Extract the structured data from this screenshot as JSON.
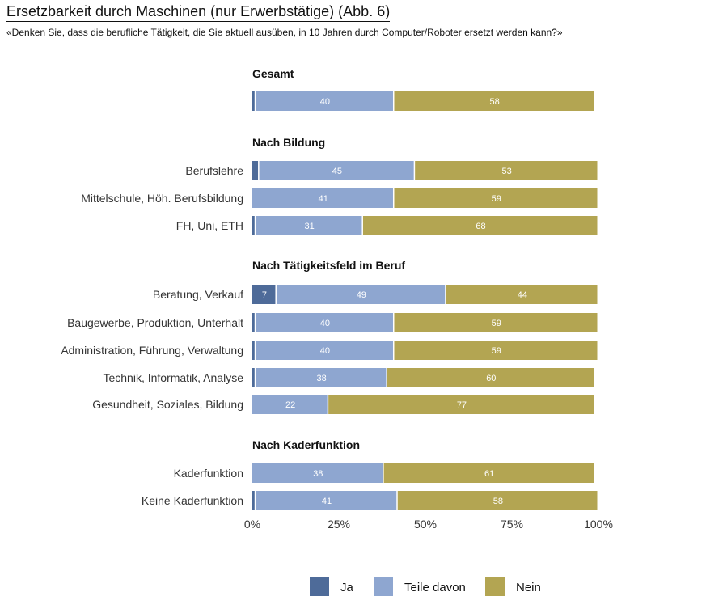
{
  "title": "Ersetzbarkeit durch Maschinen (nur Erwerbstätige)  (Abb. 6)",
  "subtitle": "«Denken Sie, dass die berufliche Tätigkeit, die Sie aktuell ausüben, in 10 Jahren durch Computer/Roboter ersetzt werden kann?»",
  "colors": {
    "Ja": "#4e6b99",
    "Teile davon": "#8ea6d0",
    "Nein": "#b3a552"
  },
  "chart_data": {
    "type": "bar",
    "orientation": "horizontal",
    "stacked": true,
    "xlim": [
      0,
      100
    ],
    "xticks": [
      "0%",
      "25%",
      "50%",
      "75%",
      "100%"
    ],
    "legend_position": "bottom",
    "series": [
      {
        "name": "Ja"
      },
      {
        "name": "Teile davon"
      },
      {
        "name": "Nein"
      }
    ],
    "groups": [
      {
        "header": "Gesamt",
        "rows": [
          {
            "label": "",
            "values": [
              1,
              40,
              58
            ]
          }
        ]
      },
      {
        "header": "Nach Bildung",
        "rows": [
          {
            "label": "Berufslehre",
            "values": [
              2,
              45,
              53
            ]
          },
          {
            "label": "Mittelschule, Höh. Berufsbildung",
            "values": [
              0,
              41,
              59
            ]
          },
          {
            "label": "FH, Uni, ETH",
            "values": [
              1,
              31,
              68
            ]
          }
        ]
      },
      {
        "header": "Nach Tätigkeitsfeld im Beruf",
        "rows": [
          {
            "label": "Beratung, Verkauf",
            "values": [
              7,
              49,
              44
            ]
          },
          {
            "label": "Baugewerbe, Produktion, Unterhalt",
            "values": [
              1,
              40,
              59
            ]
          },
          {
            "label": "Administration, Führung, Verwaltung",
            "values": [
              1,
              40,
              59
            ]
          },
          {
            "label": "Technik, Informatik, Analyse",
            "values": [
              1,
              38,
              60
            ]
          },
          {
            "label": "Gesundheit, Soziales, Bildung",
            "values": [
              0,
              22,
              77
            ]
          }
        ]
      },
      {
        "header": "Nach Kaderfunktion",
        "rows": [
          {
            "label": "Kaderfunktion",
            "values": [
              0,
              38,
              61
            ]
          },
          {
            "label": "Keine Kaderfunktion",
            "values": [
              1,
              41,
              58
            ]
          }
        ]
      }
    ]
  }
}
